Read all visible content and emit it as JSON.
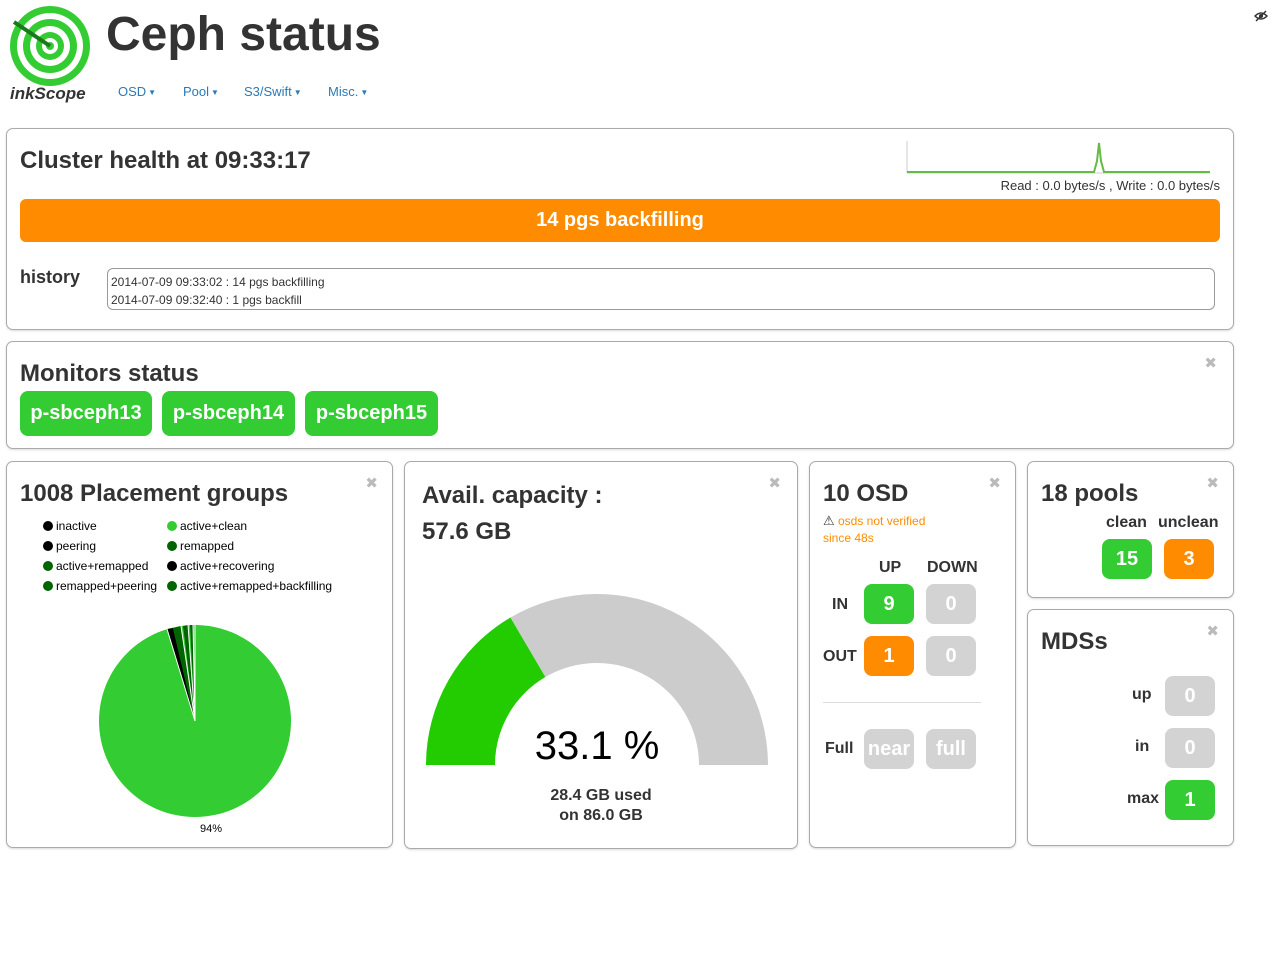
{
  "header": {
    "logo_text": "inkScope",
    "title": "Ceph status",
    "nav": [
      {
        "label": "OSD"
      },
      {
        "label": "Pool"
      },
      {
        "label": "S3/Swift"
      },
      {
        "label": "Misc."
      }
    ],
    "icon": "eye-icon"
  },
  "health": {
    "title": "Cluster health at 09:33:17",
    "io": "Read : 0.0 bytes/s , Write : 0.0 bytes/s",
    "status": "14 pgs backfilling",
    "status_color": "#ff8c00",
    "history_label": "history",
    "history": [
      "2014-07-09 09:33:02 : 14 pgs backfilling",
      "2014-07-09 09:32:40 : 1 pgs backfill"
    ]
  },
  "monitors": {
    "title": "Monitors status",
    "items": [
      "p-sbceph13",
      "p-sbceph14",
      "p-sbceph15"
    ]
  },
  "pgs": {
    "title": "1008 Placement groups",
    "legend": [
      {
        "name": "inactive",
        "color": "#000000"
      },
      {
        "name": "active+clean",
        "color": "#33cc33"
      },
      {
        "name": "peering",
        "color": "#000000"
      },
      {
        "name": "remapped",
        "color": "#006400"
      },
      {
        "name": "active+remapped",
        "color": "#006400"
      },
      {
        "name": "active+recovering",
        "color": "#000000"
      },
      {
        "name": "remapped+peering",
        "color": "#006400"
      },
      {
        "name": "active+remapped+backfilling",
        "color": "#006400"
      }
    ],
    "pie_label": "94%"
  },
  "capacity": {
    "title": "Avail. capacity :",
    "avail": "57.6 GB",
    "percent_text": "33.1 %",
    "percent_used": 33.1,
    "used_line": "28.4 GB used",
    "total_line": "on 86.0 GB",
    "used_color": "#22cc00",
    "free_color": "#cccccc"
  },
  "osd": {
    "title": "10 OSD",
    "warning": "osds not verified",
    "warning_since": "since 48s",
    "col_up": "UP",
    "col_down": "DOWN",
    "row_in": "IN",
    "row_out": "OUT",
    "in_up": "9",
    "in_down": "0",
    "out_up": "1",
    "out_down": "0",
    "full_label": "Full",
    "near_label": "near",
    "full_badge": "full"
  },
  "pools": {
    "title": "18 pools",
    "clean_label": "clean",
    "unclean_label": "unclean",
    "clean": "15",
    "unclean": "3"
  },
  "mds": {
    "title": "MDSs",
    "up_label": "up",
    "in_label": "in",
    "max_label": "max",
    "up": "0",
    "in": "0",
    "max": "1"
  }
}
